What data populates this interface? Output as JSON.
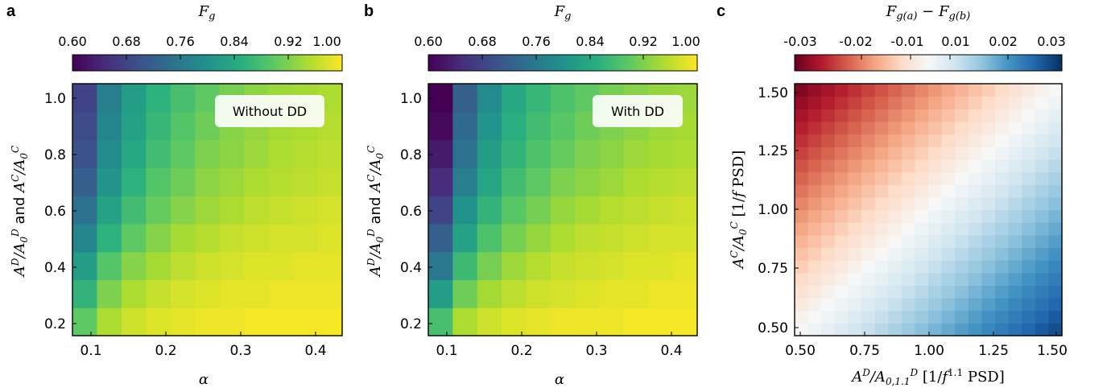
{
  "panels": [
    {
      "id": "a",
      "label": "a",
      "colormap": "viridis",
      "colorbar": {
        "label": "F_g",
        "min": 0.6,
        "max": 1.0,
        "ticks": [
          "0.60",
          "0.68",
          "0.76",
          "0.84",
          "0.92",
          "1.00"
        ]
      },
      "annotation": "Without DD",
      "xlabel": "α",
      "ylabel": "A^D/A0^D and A^C/A0^C",
      "xticks": [
        "0.1",
        "0.2",
        "0.3",
        "0.4"
      ],
      "yticks": [
        "0.2",
        "0.4",
        "0.6",
        "0.8",
        "1.0"
      ]
    },
    {
      "id": "b",
      "label": "b",
      "colormap": "viridis",
      "colorbar": {
        "label": "F_g",
        "min": 0.6,
        "max": 1.0,
        "ticks": [
          "0.60",
          "0.68",
          "0.76",
          "0.84",
          "0.92",
          "1.00"
        ]
      },
      "annotation": "With DD",
      "xlabel": "α",
      "ylabel": "A^D/A0^D and A^C/A0^C",
      "xticks": [
        "0.1",
        "0.2",
        "0.3",
        "0.4"
      ],
      "yticks": [
        "0.2",
        "0.4",
        "0.6",
        "0.8",
        "1.0"
      ]
    },
    {
      "id": "c",
      "label": "c",
      "colormap": "RdBu",
      "colorbar": {
        "label": "F_g(a) − F_g(b)",
        "min": -0.03,
        "max": 0.03,
        "ticks": [
          "-0.03",
          "-0.02",
          "-0.01",
          "0.01",
          "0.02",
          "0.03"
        ]
      },
      "xlabel": "A^D/A^D_0,1.1 [1/f^1.1 PSD]",
      "ylabel": "A^C/A0^C [1/f PSD]",
      "xticks": [
        "0.50",
        "0.75",
        "1.00",
        "1.25",
        "1.50"
      ],
      "yticks": [
        "0.50",
        "0.75",
        "1.00",
        "1.25",
        "1.50"
      ]
    }
  ],
  "chart_data": [
    {
      "type": "heatmap",
      "panel": "a",
      "x": [
        0.1,
        0.13,
        0.16,
        0.19,
        0.22,
        0.25,
        0.28,
        0.31,
        0.34,
        0.37,
        0.4
      ],
      "y": [
        0.2,
        0.3,
        0.4,
        0.5,
        0.6,
        0.7,
        0.8,
        0.9,
        1.0
      ],
      "z": [
        [
          0.9,
          0.95,
          0.97,
          0.98,
          0.985,
          0.99,
          0.99,
          0.995,
          0.995,
          0.995,
          0.995
        ],
        [
          0.86,
          0.92,
          0.95,
          0.965,
          0.975,
          0.98,
          0.985,
          0.985,
          0.99,
          0.99,
          0.99
        ],
        [
          0.82,
          0.89,
          0.925,
          0.945,
          0.96,
          0.97,
          0.975,
          0.98,
          0.98,
          0.985,
          0.985
        ],
        [
          0.78,
          0.855,
          0.9,
          0.925,
          0.945,
          0.955,
          0.965,
          0.97,
          0.975,
          0.975,
          0.98
        ],
        [
          0.75,
          0.83,
          0.875,
          0.905,
          0.925,
          0.94,
          0.95,
          0.96,
          0.965,
          0.97,
          0.975
        ],
        [
          0.72,
          0.805,
          0.855,
          0.89,
          0.91,
          0.93,
          0.94,
          0.95,
          0.955,
          0.96,
          0.965
        ],
        [
          0.7,
          0.79,
          0.84,
          0.875,
          0.9,
          0.92,
          0.93,
          0.94,
          0.95,
          0.955,
          0.96
        ],
        [
          0.69,
          0.78,
          0.83,
          0.865,
          0.89,
          0.91,
          0.925,
          0.935,
          0.945,
          0.95,
          0.955
        ],
        [
          0.68,
          0.77,
          0.82,
          0.855,
          0.88,
          0.9,
          0.915,
          0.93,
          0.94,
          0.945,
          0.95
        ]
      ]
    },
    {
      "type": "heatmap",
      "panel": "b",
      "x": [
        0.1,
        0.13,
        0.16,
        0.19,
        0.22,
        0.25,
        0.28,
        0.31,
        0.34,
        0.37,
        0.4
      ],
      "y": [
        0.2,
        0.3,
        0.4,
        0.5,
        0.6,
        0.7,
        0.8,
        0.9,
        1.0
      ],
      "z": [
        [
          0.88,
          0.95,
          0.97,
          0.98,
          0.985,
          0.99,
          0.99,
          0.99,
          0.995,
          0.995,
          0.995
        ],
        [
          0.82,
          0.91,
          0.945,
          0.96,
          0.97,
          0.975,
          0.98,
          0.985,
          0.985,
          0.99,
          0.99
        ],
        [
          0.76,
          0.87,
          0.915,
          0.94,
          0.955,
          0.965,
          0.97,
          0.975,
          0.98,
          0.98,
          0.985
        ],
        [
          0.72,
          0.83,
          0.885,
          0.915,
          0.935,
          0.95,
          0.96,
          0.965,
          0.97,
          0.975,
          0.975
        ],
        [
          0.68,
          0.8,
          0.86,
          0.895,
          0.915,
          0.935,
          0.945,
          0.955,
          0.96,
          0.965,
          0.97
        ],
        [
          0.65,
          0.77,
          0.835,
          0.875,
          0.9,
          0.92,
          0.93,
          0.94,
          0.95,
          0.955,
          0.96
        ],
        [
          0.63,
          0.75,
          0.82,
          0.86,
          0.885,
          0.905,
          0.92,
          0.93,
          0.94,
          0.945,
          0.95
        ],
        [
          0.61,
          0.735,
          0.805,
          0.85,
          0.875,
          0.895,
          0.91,
          0.92,
          0.93,
          0.94,
          0.945
        ],
        [
          0.6,
          0.72,
          0.79,
          0.84,
          0.865,
          0.885,
          0.9,
          0.915,
          0.925,
          0.935,
          0.94
        ]
      ]
    },
    {
      "type": "heatmap",
      "panel": "c",
      "x_range": [
        0.5,
        1.5
      ],
      "y_range": [
        0.5,
        1.5
      ],
      "grid": 20,
      "description_values": "difference ≈ -0.03 at top-left, ~0 along the diagonal, ≈ +0.015 at bottom-right"
    }
  ]
}
